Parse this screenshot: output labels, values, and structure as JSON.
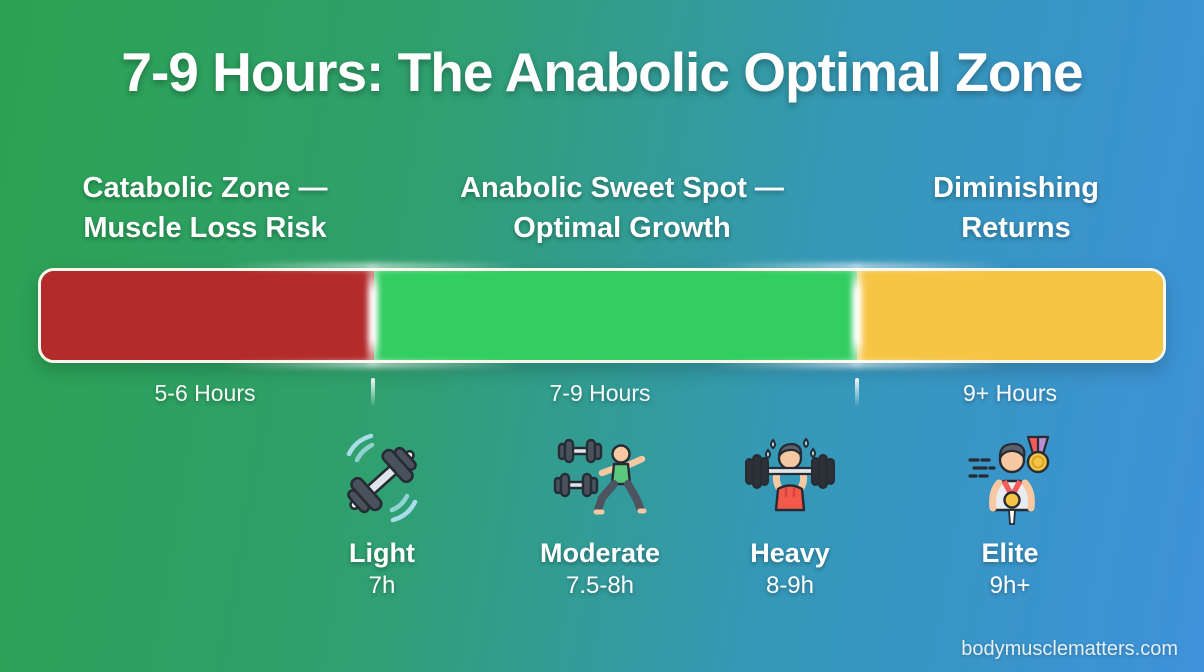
{
  "title": "7-9 Hours: The Anabolic Optimal Zone",
  "zones": [
    {
      "line1": "Catabolic Zone —",
      "line2": "Muscle Loss Risk",
      "range": "5-6 Hours",
      "color": "#b32b2b",
      "width_pct": 29.7
    },
    {
      "line1": "Anabolic Sweet Spot —",
      "line2": "Optimal Growth",
      "range": "7-9 Hours",
      "color": "#33ce62",
      "width_pct": 43.0
    },
    {
      "line1": "Diminishing",
      "line2": "Returns",
      "range": "9+ Hours",
      "color": "#f6c544",
      "width_pct": 27.3
    }
  ],
  "levels": [
    {
      "name": "Light",
      "hours": "7h",
      "icon": "dumbbell-icon"
    },
    {
      "name": "Moderate",
      "hours": "7.5-8h",
      "icon": "dumbbells-stretch-icon"
    },
    {
      "name": "Heavy",
      "hours": "8-9h",
      "icon": "overhead-press-icon"
    },
    {
      "name": "Elite",
      "hours": "9h+",
      "icon": "champion-medals-icon"
    }
  ],
  "watermark": "bodymusclematters.com",
  "colors": {
    "background_left": "#2ba251",
    "background_right": "#3e92da",
    "bar_border": "#fbf7ec",
    "text": "#ffffff"
  }
}
